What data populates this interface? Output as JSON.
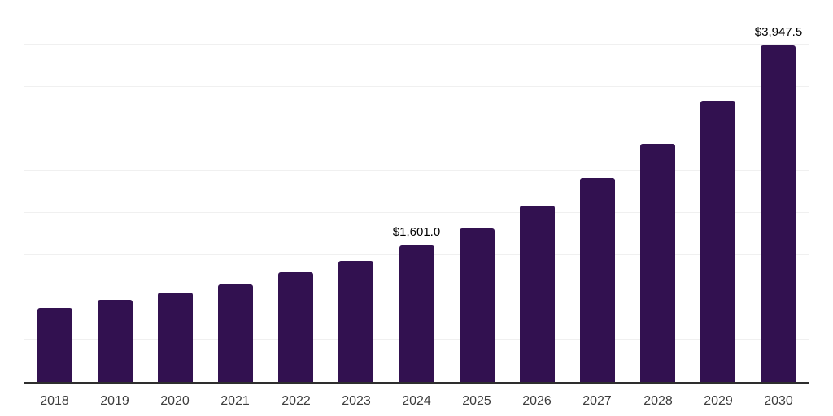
{
  "chart_data": {
    "type": "bar",
    "title": "",
    "xlabel": "",
    "ylabel": "",
    "categories": [
      "2018",
      "2019",
      "2020",
      "2021",
      "2022",
      "2023",
      "2024",
      "2025",
      "2026",
      "2027",
      "2028",
      "2029",
      "2030"
    ],
    "values": [
      873,
      962,
      1047,
      1146,
      1289,
      1423,
      1601,
      1808,
      2069,
      2394,
      2795,
      3298,
      3947.5
    ],
    "data_labels": [
      "",
      "",
      "",
      "",
      "",
      "",
      "$1,601.0",
      "",
      "",
      "",
      "",
      "",
      "$3,947.5"
    ],
    "ylim": [
      0,
      4500
    ],
    "grid": true,
    "legend": false,
    "bar_color": "#321150",
    "gridline_color": "#f0f0f0",
    "axis_color": "#2e2e2e",
    "tick_label_color": "#3d3d3d",
    "data_label_color": "#000000"
  }
}
